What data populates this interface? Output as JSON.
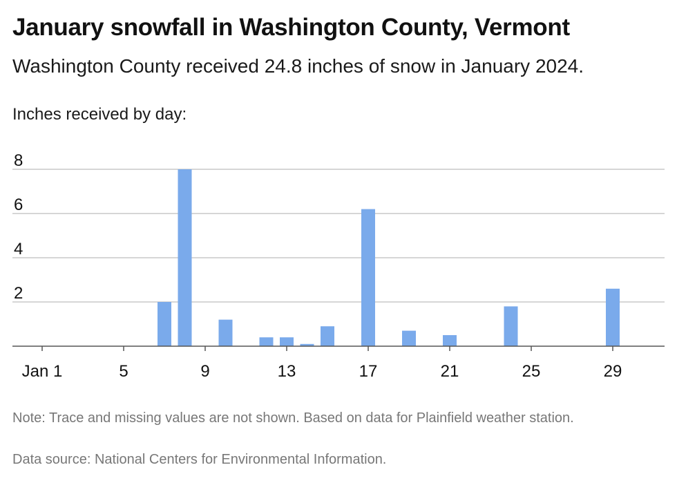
{
  "title": "January snowfall in Washington County, Vermont",
  "subtitle": "Washington County received 24.8 inches of snow in January 2024.",
  "axis_caption": "Inches received by day:",
  "note": "Note: Trace and missing values are not shown. Based on data for Plainfield weather station.",
  "source": "Data source: National Centers for Environmental Information.",
  "colors": {
    "bar": "#7aaaeb",
    "grid": "#bdbdbd",
    "axis": "#555555",
    "tick_text": "#111111"
  },
  "chart_data": {
    "type": "bar",
    "title": "January snowfall in Washington County, Vermont",
    "ylabel": "Inches received by day:",
    "xlabel": "",
    "x_tick_values": [
      1,
      5,
      9,
      13,
      17,
      21,
      25,
      29
    ],
    "x_tick_labels": [
      "Jan 1",
      "5",
      "9",
      "13",
      "17",
      "21",
      "25",
      "29"
    ],
    "y_ticks": [
      2,
      4,
      6,
      8
    ],
    "ylim": [
      0,
      8
    ],
    "xlim": [
      1,
      31
    ],
    "grid": true,
    "days": [
      7,
      8,
      10,
      12,
      13,
      14,
      15,
      17,
      19,
      21,
      24,
      29
    ],
    "values": [
      2.0,
      8.0,
      1.2,
      0.4,
      0.4,
      0.1,
      0.9,
      6.2,
      0.7,
      0.5,
      1.8,
      2.6
    ]
  }
}
